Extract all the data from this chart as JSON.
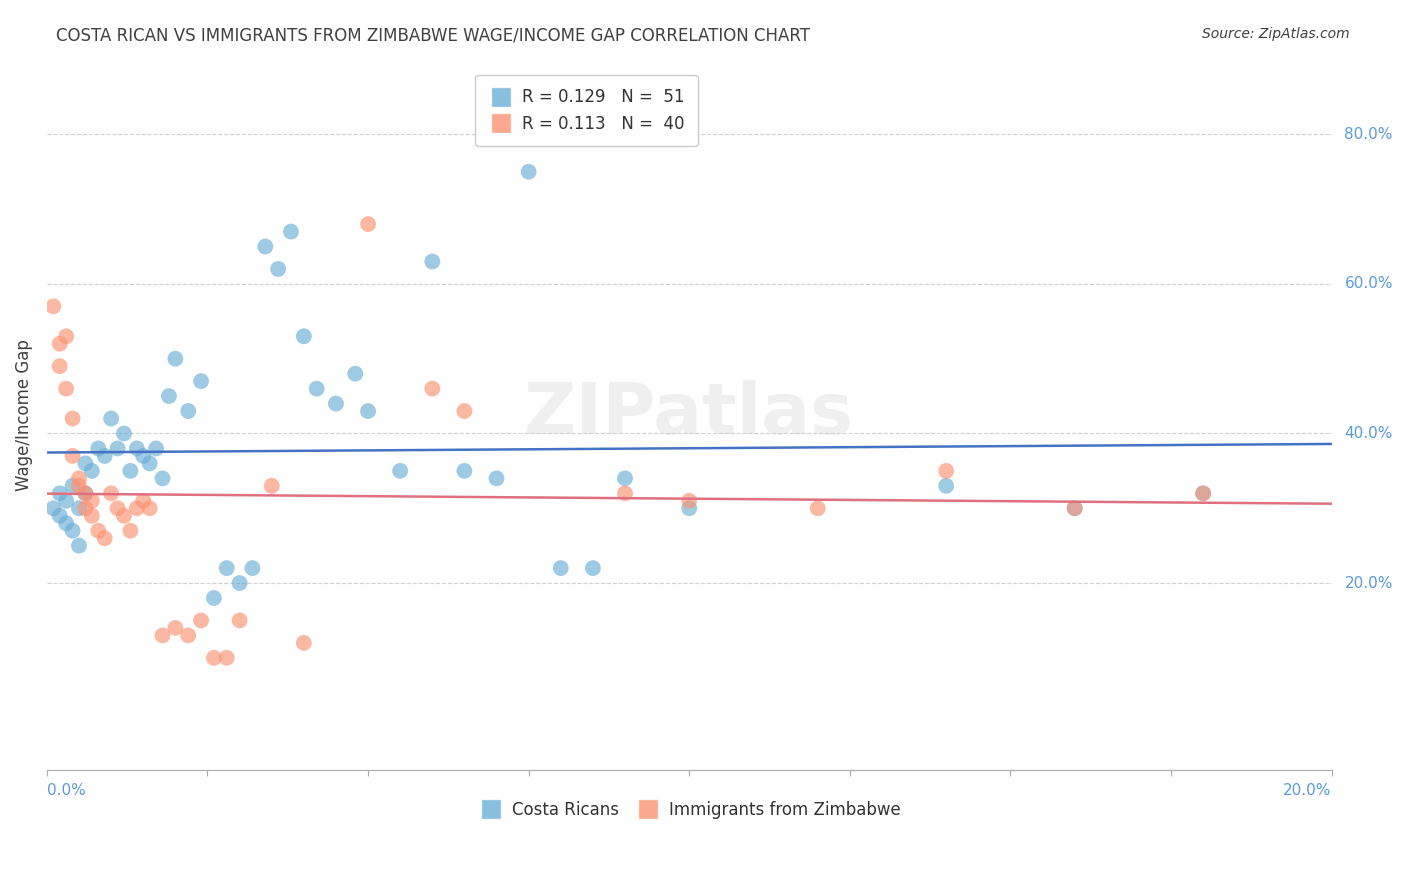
{
  "title": "COSTA RICAN VS IMMIGRANTS FROM ZIMBABWE WAGE/INCOME GAP CORRELATION CHART",
  "source": "Source: ZipAtlas.com",
  "ylabel": "Wage/Income Gap",
  "watermark": "ZIPatlas",
  "blue_color": "#6baed6",
  "pink_color": "#fc9272",
  "line_blue": "#4472C4",
  "line_pink": "#E07080",
  "title_color": "#404040",
  "axis_color": "#5B9BD5",
  "grid_color": "#d0d0d0",
  "xlim": [
    0.0,
    0.2
  ],
  "ylim": [
    -0.05,
    0.9
  ],
  "ytick_vals": [
    0.2,
    0.4,
    0.6,
    0.8
  ],
  "ytick_labels": [
    "20.0%",
    "40.0%",
    "60.0%",
    "80.0%"
  ],
  "costa_ricans_x": [
    0.001,
    0.002,
    0.002,
    0.003,
    0.003,
    0.004,
    0.004,
    0.005,
    0.005,
    0.006,
    0.006,
    0.007,
    0.008,
    0.009,
    0.01,
    0.011,
    0.012,
    0.013,
    0.014,
    0.015,
    0.016,
    0.017,
    0.018,
    0.019,
    0.02,
    0.022,
    0.024,
    0.026,
    0.028,
    0.03,
    0.032,
    0.034,
    0.036,
    0.038,
    0.04,
    0.042,
    0.045,
    0.048,
    0.05,
    0.055,
    0.06,
    0.065,
    0.07,
    0.075,
    0.08,
    0.085,
    0.09,
    0.1,
    0.14,
    0.16,
    0.18
  ],
  "costa_ricans_y": [
    0.3,
    0.29,
    0.32,
    0.31,
    0.28,
    0.33,
    0.27,
    0.3,
    0.25,
    0.32,
    0.36,
    0.35,
    0.38,
    0.37,
    0.42,
    0.38,
    0.4,
    0.35,
    0.38,
    0.37,
    0.36,
    0.38,
    0.34,
    0.45,
    0.5,
    0.43,
    0.47,
    0.18,
    0.22,
    0.2,
    0.22,
    0.65,
    0.62,
    0.67,
    0.53,
    0.46,
    0.44,
    0.48,
    0.43,
    0.35,
    0.63,
    0.35,
    0.34,
    0.75,
    0.22,
    0.22,
    0.34,
    0.3,
    0.33,
    0.3,
    0.32
  ],
  "zimbabwe_x": [
    0.001,
    0.002,
    0.002,
    0.003,
    0.003,
    0.004,
    0.004,
    0.005,
    0.005,
    0.006,
    0.006,
    0.007,
    0.007,
    0.008,
    0.009,
    0.01,
    0.011,
    0.012,
    0.013,
    0.014,
    0.015,
    0.016,
    0.018,
    0.02,
    0.022,
    0.024,
    0.026,
    0.028,
    0.03,
    0.035,
    0.04,
    0.05,
    0.06,
    0.065,
    0.09,
    0.1,
    0.12,
    0.14,
    0.16,
    0.18
  ],
  "zimbabwe_y": [
    0.57,
    0.49,
    0.52,
    0.46,
    0.53,
    0.42,
    0.37,
    0.34,
    0.33,
    0.32,
    0.3,
    0.31,
    0.29,
    0.27,
    0.26,
    0.32,
    0.3,
    0.29,
    0.27,
    0.3,
    0.31,
    0.3,
    0.13,
    0.14,
    0.13,
    0.15,
    0.1,
    0.1,
    0.15,
    0.33,
    0.12,
    0.68,
    0.46,
    0.43,
    0.32,
    0.31,
    0.3,
    0.35,
    0.3,
    0.32
  ]
}
